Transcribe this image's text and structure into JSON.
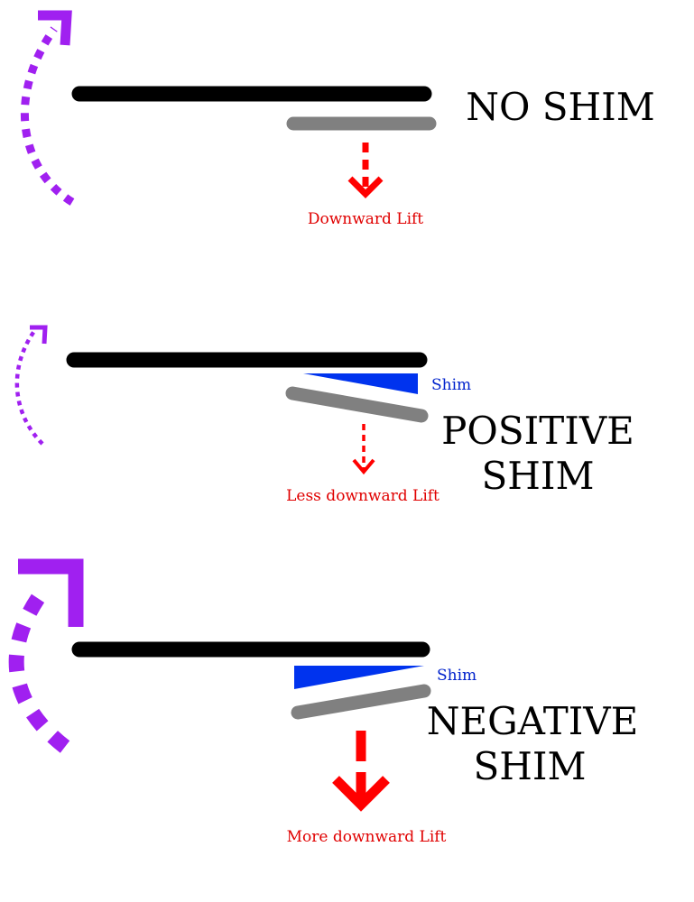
{
  "colors": {
    "wing": "#000000",
    "flap": "#808080",
    "shim": "#0033ee",
    "lift": "#ff0000",
    "rotation": "#a020f0"
  },
  "panels": [
    {
      "title_lines": [
        "NO SHIM"
      ],
      "lift_label": "Downward Lift",
      "shim_label": "",
      "lift_strength": "normal",
      "rotation_strength": "normal"
    },
    {
      "title_lines": [
        "POSITIVE",
        "SHIM"
      ],
      "lift_label": "Less downward Lift",
      "shim_label": "Shim",
      "lift_strength": "less",
      "rotation_strength": "less"
    },
    {
      "title_lines": [
        "NEGATIVE",
        "SHIM"
      ],
      "lift_label": "More downward Lift",
      "shim_label": "Shim",
      "lift_strength": "more",
      "rotation_strength": "more"
    }
  ]
}
